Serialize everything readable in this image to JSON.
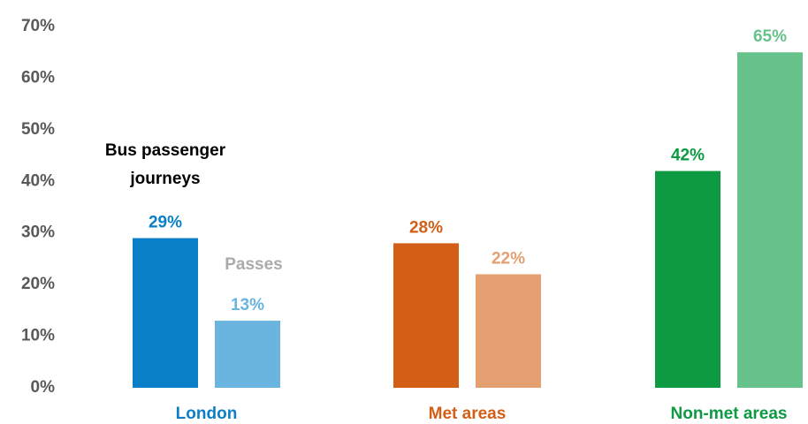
{
  "chart_data": {
    "type": "bar",
    "categories": [
      "London",
      "Met areas",
      "Non-met areas"
    ],
    "series": [
      {
        "name": "Bus passenger journeys",
        "colors": [
          "#0a7fc7",
          "#d35f16",
          "#0d9a43"
        ],
        "values": [
          29,
          28,
          42
        ],
        "value_labels": [
          "29%",
          "28%",
          "42%"
        ]
      },
      {
        "name": "Passes",
        "colors": [
          "#6ab4e0",
          "#e5a072",
          "#67c18b"
        ],
        "values": [
          13,
          22,
          65
        ],
        "value_labels": [
          "13%",
          "22%",
          "65%"
        ]
      }
    ],
    "ylim": [
      0,
      70
    ],
    "yticks": [
      {
        "value": 0,
        "label": "0%"
      },
      {
        "value": 10,
        "label": "10%"
      },
      {
        "value": 20,
        "label": "20%"
      },
      {
        "value": 30,
        "label": "30%"
      },
      {
        "value": 40,
        "label": "40%"
      },
      {
        "value": 50,
        "label": "50%"
      },
      {
        "value": 60,
        "label": "60%"
      },
      {
        "value": 70,
        "label": "70%"
      }
    ],
    "grid": false
  }
}
